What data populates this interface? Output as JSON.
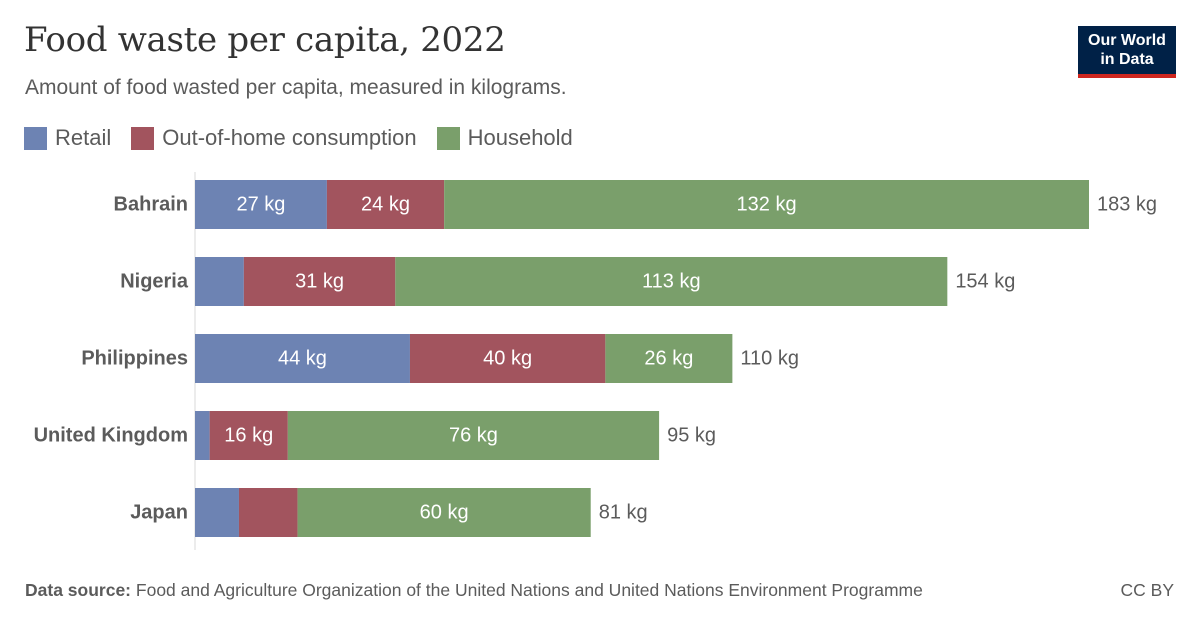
{
  "header": {
    "title": "Food waste per capita, 2022",
    "subtitle": "Amount of food wasted per capita, measured in kilograms."
  },
  "logo": {
    "line1": "Our World",
    "line2": "in Data"
  },
  "footer": {
    "source_label": "Data source:",
    "source_text": "Food and Agriculture Organization of the United Nations and United Nations Environment Programme",
    "license": "CC BY"
  },
  "chart_data": {
    "type": "bar",
    "orientation": "horizontal",
    "stacked": true,
    "title": "Food waste per capita, 2022",
    "subtitle": "Amount of food wasted per capita, measured in kilograms.",
    "unit": "kg",
    "legend_position": "top-left",
    "grid": false,
    "xlim": [
      0,
      183
    ],
    "categories": [
      "Bahrain",
      "Nigeria",
      "Philippines",
      "United Kingdom",
      "Japan"
    ],
    "series": [
      {
        "name": "Retail",
        "color": "#6d83b3",
        "values": [
          27,
          10,
          44,
          3,
          9
        ]
      },
      {
        "name": "Out-of-home consumption",
        "color": "#a2545e",
        "values": [
          24,
          31,
          40,
          16,
          12
        ]
      },
      {
        "name": "Household",
        "color": "#7a9f6b",
        "values": [
          132,
          113,
          26,
          76,
          60
        ]
      }
    ],
    "totals": [
      183,
      154,
      110,
      95,
      81
    ]
  }
}
